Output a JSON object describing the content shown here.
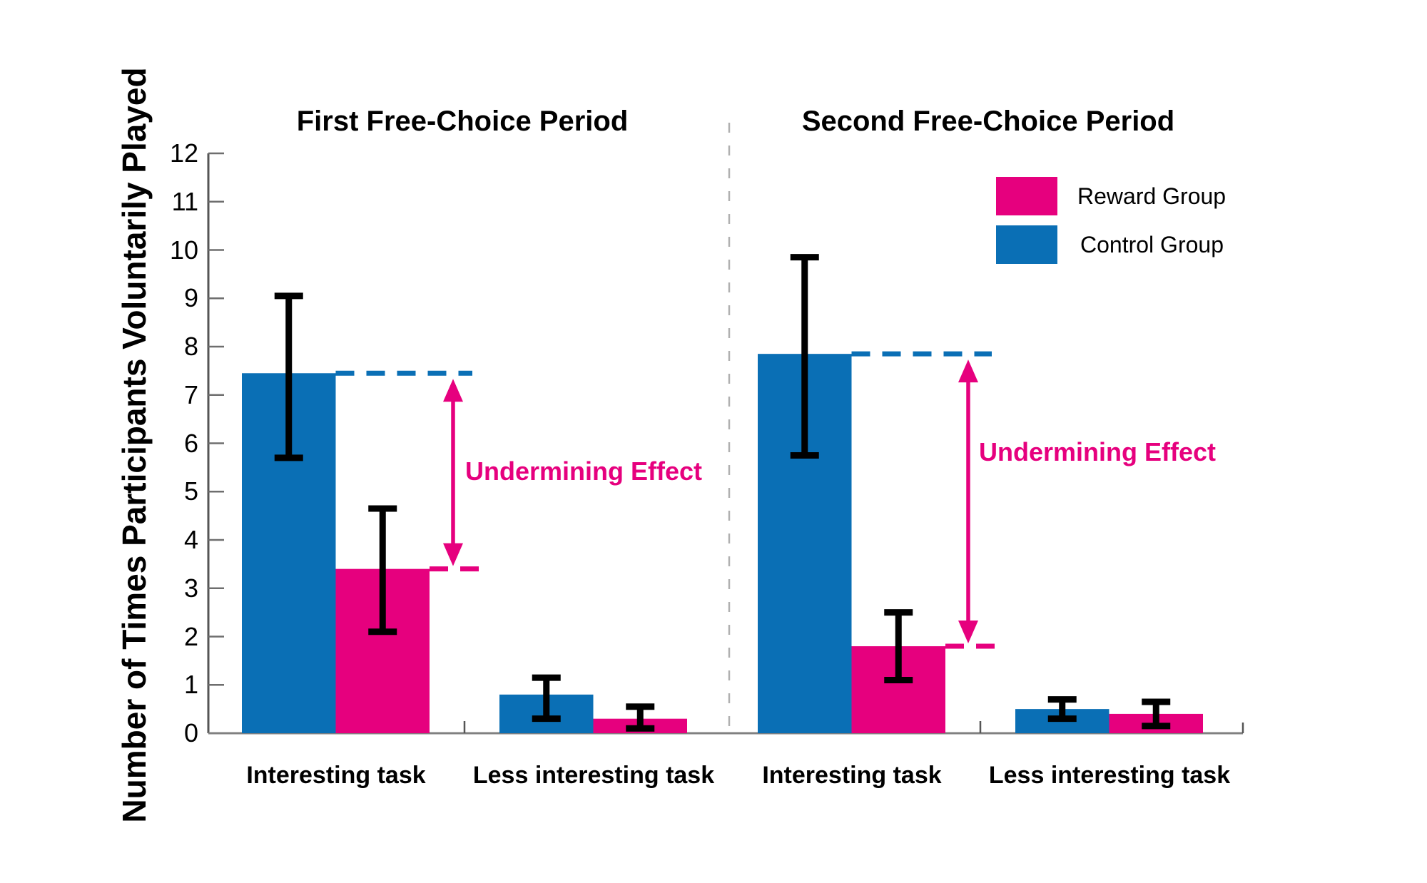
{
  "ylabel": "Number of Times Participants Voluntarily Played",
  "colors": {
    "control_blue": "#0A6FB5",
    "reward_pink": "#E6007E",
    "error_black": "#000000",
    "axis_gray": "#555555",
    "separator_gray": "#B0B0B0"
  },
  "legend": {
    "items": [
      {
        "label": "Reward Group",
        "color": "#E6007E"
      },
      {
        "label": "Control Group",
        "color": "#0A6FB5"
      }
    ]
  },
  "chart_data": {
    "type": "bar",
    "ylabel": "Number of Times Participants Voluntarily Played",
    "ylim": [
      0,
      12
    ],
    "yticks": [
      0,
      1,
      2,
      3,
      4,
      5,
      6,
      7,
      8,
      9,
      10,
      11,
      12
    ],
    "grid": false,
    "legend_position": "top-right",
    "error_bars": true,
    "panels": [
      {
        "title": "First Free-Choice Period",
        "categories": [
          "Interesting task",
          "Less interesting task"
        ],
        "series": [
          {
            "name": "Control Group",
            "color": "#0A6FB5",
            "values": [
              7.45,
              0.8
            ],
            "err_low": [
              5.7,
              0.3
            ],
            "err_high": [
              9.05,
              1.15
            ]
          },
          {
            "name": "Reward Group",
            "color": "#E6007E",
            "values": [
              3.4,
              0.3
            ],
            "err_low": [
              2.1,
              0.1
            ],
            "err_high": [
              4.65,
              0.55
            ]
          }
        ],
        "annotation": {
          "label": "Undermining Effect",
          "from_value": 7.45,
          "to_value": 3.4
        }
      },
      {
        "title": "Second Free-Choice Period",
        "categories": [
          "Interesting task",
          "Less interesting task"
        ],
        "series": [
          {
            "name": "Control Group",
            "color": "#0A6FB5",
            "values": [
              7.85,
              0.5
            ],
            "err_low": [
              5.75,
              0.3
            ],
            "err_high": [
              9.85,
              0.7
            ]
          },
          {
            "name": "Reward Group",
            "color": "#E6007E",
            "values": [
              1.8,
              0.4
            ],
            "err_low": [
              1.1,
              0.15
            ],
            "err_high": [
              2.5,
              0.65
            ]
          }
        ],
        "annotation": {
          "label": "Undermining Effect",
          "from_value": 7.85,
          "to_value": 1.8
        }
      }
    ]
  }
}
